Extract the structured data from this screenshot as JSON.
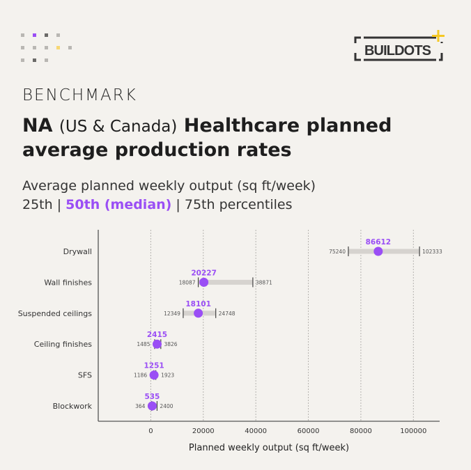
{
  "brand": {
    "logo_text": "BUILDOTS",
    "accent": "#9a4ef5",
    "logo_plus_color": "#f5c823"
  },
  "header": {
    "kicker": "BENCHMARK",
    "title_bold_1": "NA",
    "title_light": "(US & Canada)",
    "title_bold_2": "Healthcare planned average production rates",
    "subtitle_line1": "Average planned weekly output (sq ft/week)",
    "subtitle_p25": "25th",
    "subtitle_p50": "50th (median)",
    "subtitle_p75": "75th percentiles",
    "separator": "|"
  },
  "chart_data": {
    "type": "dot-range",
    "xlabel": "Planned weekly output (sq ft/week)",
    "xlim": [
      -20000,
      110000
    ],
    "xticks": [
      0,
      20000,
      40000,
      60000,
      80000,
      100000
    ],
    "grid": "vertical dotted",
    "colors": {
      "median": "#9a4ef5",
      "range": "#d6d3cf",
      "whisker": "#444444"
    },
    "categories": [
      "Drywall",
      "Wall finishes",
      "Suspended ceilings",
      "Ceiling finishes",
      "SFS",
      "Blockwork"
    ],
    "p25": [
      75240,
      18087,
      12349,
      1485,
      1186,
      364
    ],
    "median": [
      86612,
      20227,
      18101,
      2415,
      1251,
      535
    ],
    "p75": [
      102333,
      38871,
      24748,
      3826,
      1923,
      2400
    ]
  }
}
